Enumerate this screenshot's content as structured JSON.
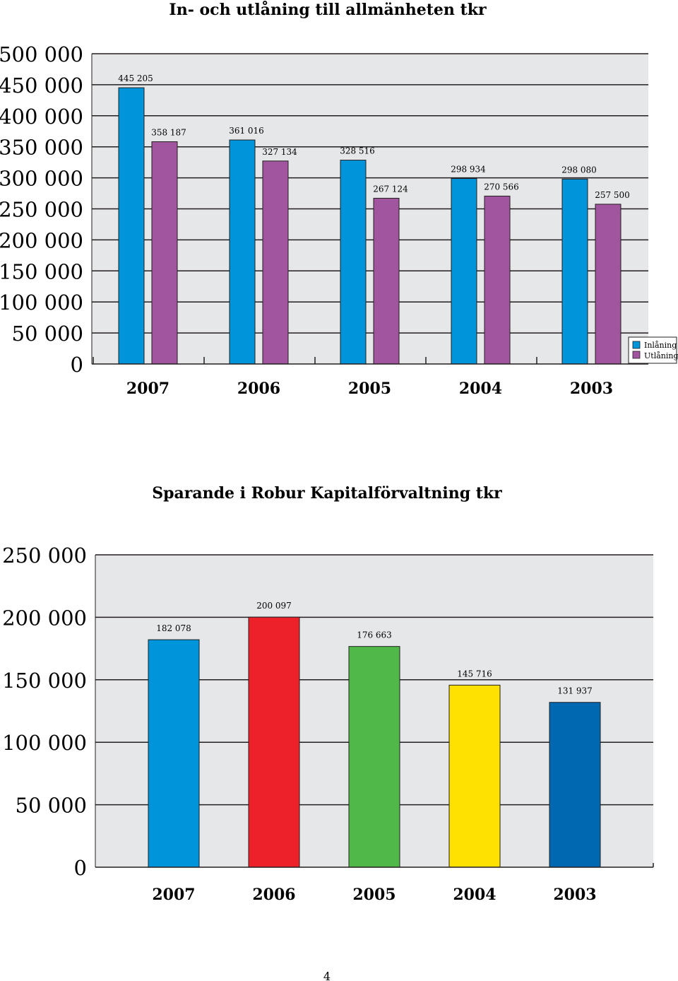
{
  "page_number": "4",
  "chart_data": [
    {
      "type": "bar",
      "title": "In- och utlåning till allmänheten tkr",
      "categories": [
        "2007",
        "2006",
        "2005",
        "2004",
        "2003"
      ],
      "series": [
        {
          "name": "Inlåning",
          "color": "#0095da",
          "values": [
            445205,
            361016,
            328516,
            298934,
            298080
          ],
          "labels": [
            "445 205",
            "361 016",
            "328 516",
            "298 934",
            "298 080"
          ]
        },
        {
          "name": "Utlåning",
          "color": "#a0559e",
          "values": [
            358187,
            327134,
            267124,
            270566,
            257500
          ],
          "labels": [
            "358 187",
            "327 134",
            "267 124",
            "270 566",
            "257 500"
          ]
        }
      ],
      "ylim": [
        0,
        500000
      ],
      "ytick_labels": [
        "0",
        "50 000",
        "100 000",
        "150 000",
        "200 000",
        "250 000",
        "300 000",
        "350 000",
        "400 000",
        "450 000",
        "500 000"
      ],
      "grid": true,
      "legend_position": "right",
      "plot_background": "#e6e7e8"
    },
    {
      "type": "bar",
      "title": "Sparande i Robur Kapitalförvaltning tkr",
      "categories": [
        "2007",
        "2006",
        "2005",
        "2004",
        "2003"
      ],
      "values": [
        182078,
        200097,
        176663,
        145716,
        131937
      ],
      "labels": [
        "182 078",
        "200 097",
        "176 663",
        "145 716",
        "131 937"
      ],
      "colors": [
        "#0095da",
        "#ed2129",
        "#50b848",
        "#ffe100",
        "#0067b1"
      ],
      "ylim": [
        0,
        250000
      ],
      "ytick_labels": [
        "0",
        "50 000",
        "100 000",
        "150 000",
        "200 000",
        "250 000"
      ],
      "grid": true,
      "plot_background": "#e6e7e8"
    }
  ]
}
